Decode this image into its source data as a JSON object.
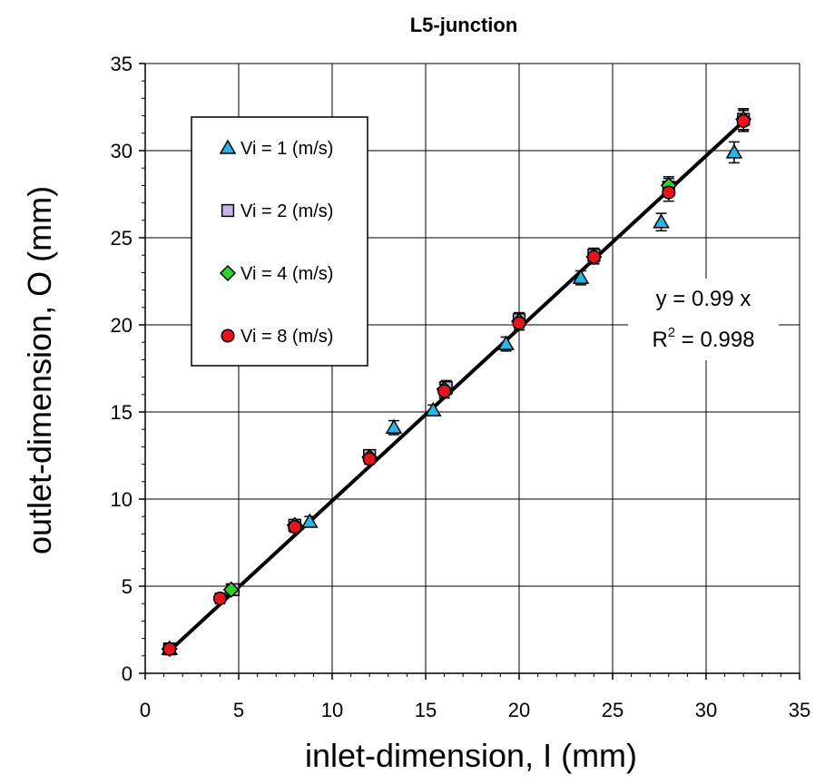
{
  "chart_data": {
    "type": "scatter",
    "title": "L5-junction",
    "xlabel": "inlet-dimension, I (mm)",
    "ylabel": "outlet-dimension, O (mm)",
    "xlim": [
      0,
      35
    ],
    "ylim": [
      0,
      35
    ],
    "xticks": [
      "0",
      "5",
      "10",
      "15",
      "20",
      "25",
      "30",
      "35"
    ],
    "yticks": [
      "0",
      "5",
      "10",
      "15",
      "20",
      "25",
      "30",
      "35"
    ],
    "grid": true,
    "legend_position": "upper-left",
    "series": [
      {
        "name": "Vi = 1 (m/s)",
        "marker": "triangle",
        "color": "#29b6e6",
        "x": [
          1.3,
          4.6,
          8.8,
          13.3,
          15.4,
          19.3,
          23.3,
          27.6,
          31.5
        ],
        "y": [
          1.4,
          4.8,
          8.7,
          14.1,
          15.1,
          18.9,
          22.7,
          25.9,
          29.9
        ],
        "err": [
          0.3,
          0.3,
          0.3,
          0.4,
          0.3,
          0.4,
          0.4,
          0.5,
          0.6
        ]
      },
      {
        "name": "Vi = 2 (m/s)",
        "marker": "square",
        "color": "#c9b3ef",
        "x": [
          1.3,
          4.7,
          8.0,
          12.0,
          16.1,
          20.0,
          24.0,
          28.0,
          32.0
        ],
        "y": [
          1.4,
          4.8,
          8.5,
          12.5,
          16.4,
          20.3,
          24.0,
          27.9,
          31.8
        ],
        "err": [
          0.3,
          0.3,
          0.3,
          0.3,
          0.4,
          0.4,
          0.4,
          0.5,
          0.6
        ]
      },
      {
        "name": "Vi = 4 (m/s)",
        "marker": "diamond",
        "color": "#2fd12f",
        "x": [
          1.3,
          4.6,
          8.0,
          12.0,
          16.0,
          20.0,
          24.0,
          28.0,
          32.0
        ],
        "y": [
          1.4,
          4.8,
          8.5,
          12.4,
          16.3,
          20.2,
          23.9,
          28.0,
          31.8
        ],
        "err": [
          0.3,
          0.3,
          0.3,
          0.3,
          0.4,
          0.4,
          0.4,
          0.5,
          0.6
        ]
      },
      {
        "name": "Vi = 8 (m/s)",
        "marker": "circle",
        "color": "#e8141c",
        "x": [
          1.3,
          4.0,
          8.0,
          12.0,
          16.0,
          20.0,
          24.0,
          28.0,
          32.0
        ],
        "y": [
          1.4,
          4.3,
          8.4,
          12.3,
          16.2,
          20.1,
          23.9,
          27.6,
          31.7
        ],
        "err": [
          0.3,
          0.3,
          0.3,
          0.3,
          0.4,
          0.4,
          0.4,
          0.5,
          0.6
        ]
      }
    ],
    "fit": {
      "slope": 0.99,
      "x_range": [
        1.3,
        32.0
      ],
      "equation": "y = 0.99 x",
      "r_label": "R",
      "r_sup": "2",
      "r_value": " = 0.998"
    }
  }
}
